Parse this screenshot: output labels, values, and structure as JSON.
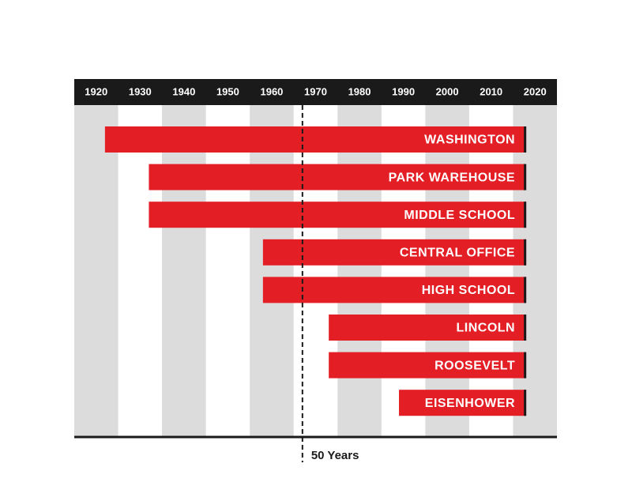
{
  "chart_data": {
    "type": "range-bar",
    "categories": [
      "WASHINGTON",
      "PARK WAREHOUSE",
      "MIDDLE SCHOOL",
      "CENTRAL OFFICE",
      "HIGH SCHOOL",
      "LINCOLN",
      "ROOSEVELT",
      "EISENHOWER"
    ],
    "start": [
      1922,
      1932,
      1932,
      1958,
      1958,
      1973,
      1973,
      1989
    ],
    "end": [
      2018,
      2018,
      2018,
      2018,
      2018,
      2018,
      2018,
      2018
    ],
    "color": "#e31e25",
    "xlim": [
      1915,
      2025
    ],
    "xticks": [
      1920,
      1930,
      1940,
      1950,
      1960,
      1970,
      1980,
      1990,
      2000,
      2010,
      2020
    ],
    "grid": true,
    "marker": {
      "value": 1967,
      "label": "50 Years"
    }
  }
}
